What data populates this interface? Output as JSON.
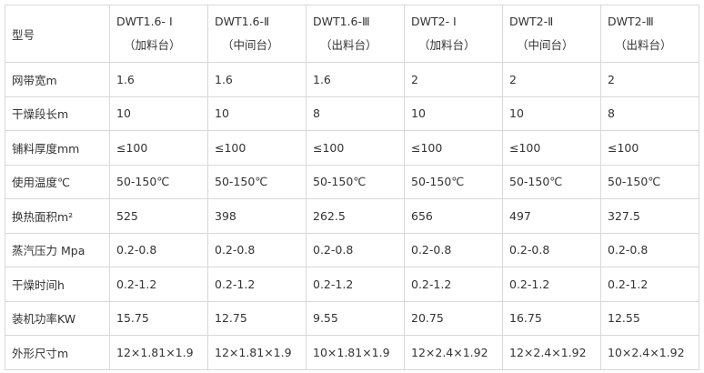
{
  "table": {
    "header": [
      "型号",
      {
        "model": "DWT1.6- Ⅰ",
        "stage": "（加料台）"
      },
      {
        "model": "DWT1.6-Ⅱ",
        "stage": "（中间台）"
      },
      {
        "model": "DWT1.6-Ⅲ",
        "stage": "（出料台）"
      },
      {
        "model": "DWT2- Ⅰ",
        "stage": "（加料台）"
      },
      {
        "model": "DWT2-Ⅱ",
        "stage": "（中间台）"
      },
      {
        "model": "DWT2-Ⅲ",
        "stage": "（出料台）"
      }
    ],
    "rows": [
      [
        "网带宽m",
        "1.6",
        "1.6",
        "1.6",
        "2",
        "2",
        "2"
      ],
      [
        "干燥段长m",
        "10",
        "10",
        "8",
        "10",
        "10",
        "8"
      ],
      [
        "铺料厚度mm",
        "≤100",
        "≤100",
        "≤100",
        "≤100",
        "≤100",
        "≤100"
      ],
      [
        "使用温度℃",
        "50-150℃",
        "50-150℃",
        "50-150℃",
        "50-150℃",
        "50-150℃",
        "50-150℃"
      ],
      [
        "换热面积m²",
        "525",
        "398",
        "262.5",
        "656",
        "497",
        "327.5"
      ],
      [
        "蒸汽压力 Mpa",
        "0.2-0.8",
        "0.2-0.8",
        "0.2-0.8",
        "0.2-0.8",
        "0.2-0.8",
        "0.2-0.8"
      ],
      [
        "干燥时间h",
        "0.2-1.2",
        "0.2-1.2",
        "0.2-1.2",
        "0.2-1.2",
        "0.2-1.2",
        "0.2-1.2"
      ],
      [
        "装机功率KW",
        "15.75",
        "12.75",
        "9.55",
        "20.75",
        "16.75",
        "12.55"
      ],
      [
        "外形尺寸m",
        "12×1.81×1.9",
        "12×1.81×1.9",
        "10×1.81×1.9",
        "12×2.4×1.92",
        "12×2.4×1.92",
        "10×2.4×1.92"
      ]
    ]
  }
}
